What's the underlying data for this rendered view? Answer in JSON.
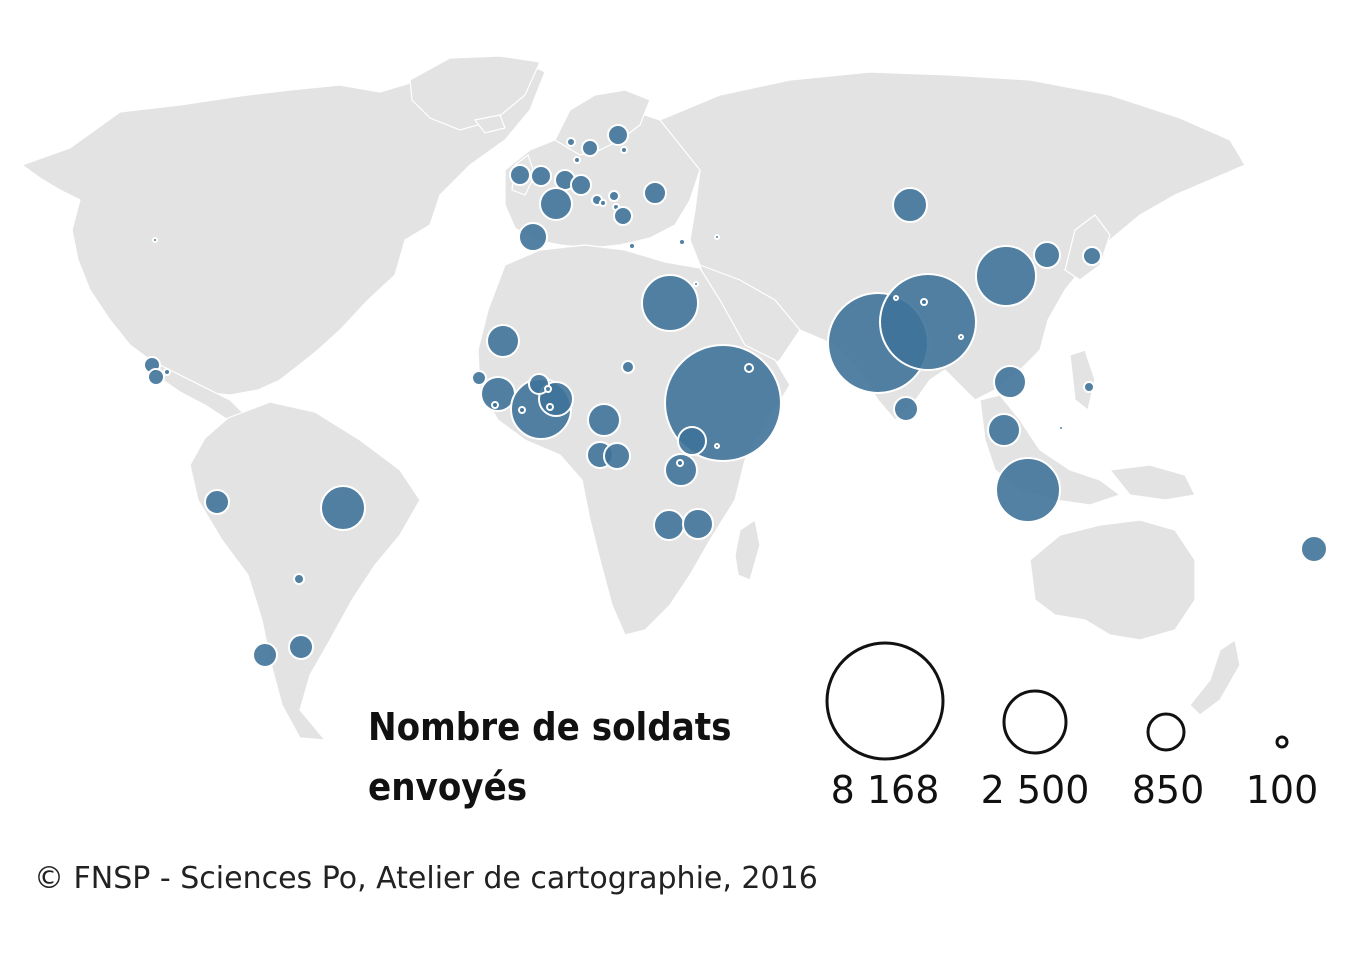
{
  "legend": {
    "title_line1": "Nombre de soldats",
    "title_line2": "envoyés",
    "values": [
      "8 168",
      "2 500",
      "850",
      "100"
    ]
  },
  "credit": "© FNSP - Sciences Po, Atelier de cartographie, 2016",
  "colors": {
    "land": "#e3e3e3",
    "bubble": "#3f7399",
    "background": "#ffffff"
  },
  "map_data": {
    "type": "proportional-symbol-map",
    "symbol_scale_reference": [
      8168,
      2500,
      850,
      100
    ]
  }
}
